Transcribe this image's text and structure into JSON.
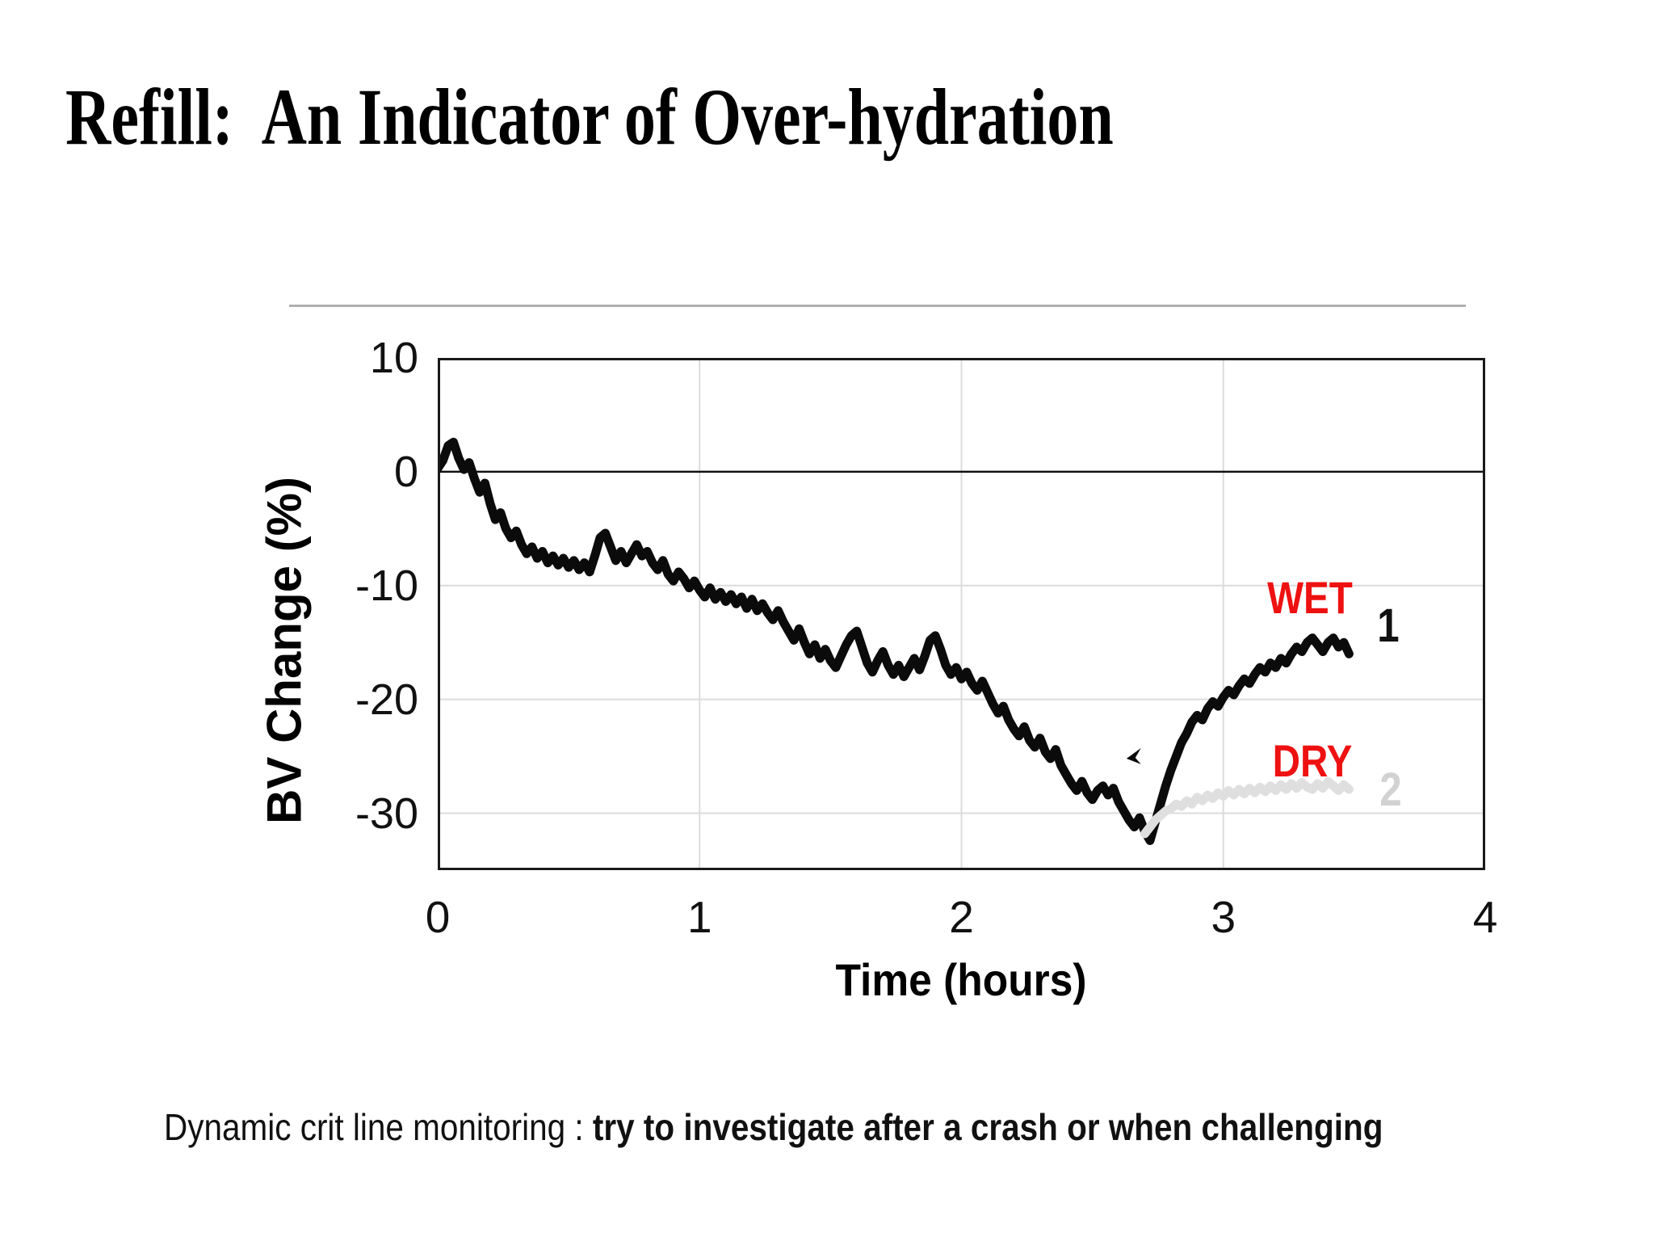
{
  "slide": {
    "title": "Refill:  An Indicator of Over-hydration",
    "caption_regular": "Dynamic crit line monitoring : ",
    "caption_bold": "try to investigate after a crash or when challenging"
  },
  "chart_data": {
    "type": "line",
    "title": "",
    "xlabel": "Time (hours)",
    "ylabel": "BV Change (%)",
    "xlim": [
      0,
      4
    ],
    "ylim": [
      -35,
      10
    ],
    "x_ticks": [
      0,
      1,
      2,
      3,
      4
    ],
    "y_ticks": [
      10,
      0,
      -10,
      -20,
      -30
    ],
    "grid": true,
    "gridline_color": "#dcdcdc",
    "border_color": "#1a1a1a",
    "zero_line_color": "#111111",
    "series": [
      {
        "name": "WET",
        "curve_number": "1",
        "color": "#0b0b0b",
        "stroke_width": 11,
        "t_start": 0.0,
        "t_step": 0.02,
        "values": [
          0.3,
          1.0,
          2.3,
          2.6,
          1.2,
          0.2,
          0.8,
          -0.6,
          -1.8,
          -1.0,
          -2.8,
          -4.2,
          -3.6,
          -5.0,
          -5.8,
          -5.2,
          -6.4,
          -7.2,
          -6.6,
          -7.6,
          -7.0,
          -8.0,
          -7.4,
          -8.2,
          -7.6,
          -8.4,
          -7.8,
          -8.6,
          -8.0,
          -8.8,
          -7.4,
          -5.8,
          -5.4,
          -6.6,
          -7.8,
          -7.0,
          -8.0,
          -7.2,
          -6.4,
          -7.4,
          -7.0,
          -8.0,
          -8.6,
          -7.8,
          -9.0,
          -9.6,
          -8.8,
          -9.4,
          -10.2,
          -9.6,
          -10.4,
          -11.0,
          -10.2,
          -11.2,
          -10.6,
          -11.4,
          -10.8,
          -11.6,
          -11.0,
          -12.0,
          -11.2,
          -12.2,
          -11.6,
          -12.4,
          -13.0,
          -12.2,
          -13.2,
          -14.0,
          -14.8,
          -13.8,
          -15.0,
          -16.0,
          -15.2,
          -16.4,
          -15.6,
          -16.6,
          -17.2,
          -16.2,
          -15.2,
          -14.4,
          -14.0,
          -15.4,
          -16.8,
          -17.6,
          -16.6,
          -15.8,
          -17.0,
          -17.8,
          -17.0,
          -18.0,
          -17.2,
          -16.4,
          -17.4,
          -16.2,
          -14.8,
          -14.4,
          -15.6,
          -17.0,
          -17.8,
          -17.2,
          -18.2,
          -17.6,
          -18.6,
          -19.2,
          -18.4,
          -19.4,
          -20.4,
          -21.2,
          -20.6,
          -21.8,
          -22.6,
          -23.2,
          -22.4,
          -23.6,
          -24.2,
          -23.4,
          -24.6,
          -25.2,
          -24.4,
          -25.8,
          -26.6,
          -27.4,
          -28.0,
          -27.2,
          -28.2,
          -28.8,
          -28.0,
          -27.6,
          -28.4,
          -27.8,
          -29.0,
          -29.8,
          -30.6,
          -31.2,
          -30.4,
          -31.6,
          -32.4,
          -30.8,
          -29.2,
          -27.6,
          -26.2,
          -25.0,
          -23.8,
          -23.0,
          -22.0,
          -21.4,
          -21.8,
          -20.8,
          -20.2,
          -20.6,
          -19.8,
          -19.2,
          -19.6,
          -18.8,
          -18.2,
          -18.6,
          -17.8,
          -17.2,
          -17.6,
          -16.8,
          -17.2,
          -16.4,
          -16.8,
          -16.0,
          -15.4,
          -15.8,
          -15.0,
          -14.6,
          -15.2,
          -15.8,
          -15.0,
          -14.6,
          -15.4,
          -15.0,
          -16.0
        ]
      },
      {
        "name": "DRY",
        "curve_number": "2",
        "color": "#dfdfdf",
        "stroke_width": 11,
        "t_start": 2.7,
        "t_step": 0.02,
        "values": [
          -31.8,
          -31.2,
          -30.6,
          -30.2,
          -29.8,
          -29.6,
          -29.2,
          -29.4,
          -28.9,
          -29.2,
          -28.6,
          -28.9,
          -28.4,
          -28.7,
          -28.2,
          -28.5,
          -28.0,
          -28.4,
          -27.9,
          -28.3,
          -27.8,
          -28.2,
          -27.7,
          -28.1,
          -27.6,
          -28.0,
          -27.5,
          -27.9,
          -27.4,
          -27.8,
          -27.3,
          -27.7,
          -27.9,
          -27.4,
          -27.8,
          -27.2,
          -27.6,
          -28.0,
          -27.5,
          -27.9
        ]
      }
    ],
    "annotations": [
      {
        "id": "wet-label",
        "text": "WET",
        "x": 3.33,
        "y": -11.1,
        "color": "#ee1111",
        "bold": true,
        "size": 56
      },
      {
        "id": "curve1-number",
        "text": "1",
        "x": 3.63,
        "y": -13.6,
        "color": "#111111",
        "bold": true,
        "size": 58
      },
      {
        "id": "dry-label",
        "text": "DRY",
        "x": 3.34,
        "y": -25.4,
        "color": "#ee1111",
        "bold": true,
        "size": 56
      },
      {
        "id": "curve2-number",
        "text": "2",
        "x": 3.64,
        "y": -28.0,
        "color": "#d2d2d2",
        "bold": true,
        "size": 58
      }
    ],
    "arrow": {
      "x": 2.63,
      "y": -25.2,
      "color": "#0b0b0b",
      "note": "arrowhead pointing at the crash nadir"
    }
  }
}
